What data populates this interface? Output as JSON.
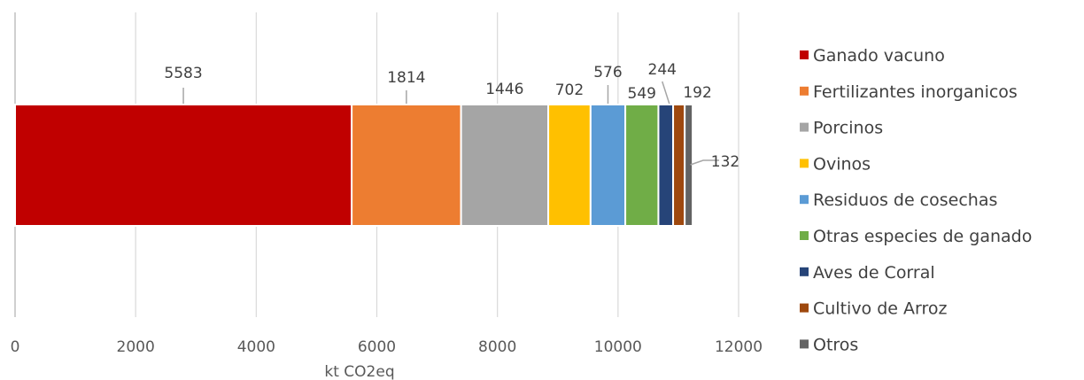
{
  "chart_data": {
    "type": "bar",
    "orientation": "horizontal",
    "stacked": true,
    "xlabel": "kt CO2eq",
    "ylabel": "",
    "xlim": [
      0,
      12000
    ],
    "x_ticks": [
      0,
      2000,
      4000,
      6000,
      8000,
      10000,
      12000
    ],
    "grid": "vertical",
    "legend_position": "right",
    "series": [
      {
        "name": "Ganado vacuno",
        "value": 5583,
        "color": "#C00000"
      },
      {
        "name": "Fertilizantes inorganicos",
        "value": 1814,
        "color": "#ED7D31"
      },
      {
        "name": "Porcinos",
        "value": 1446,
        "color": "#A5A5A5"
      },
      {
        "name": "Ovinos",
        "value": 702,
        "color": "#FFC000"
      },
      {
        "name": "Residuos de cosechas",
        "value": 576,
        "color": "#5B9BD5"
      },
      {
        "name": "Otras especies de ganado",
        "value": 549,
        "color": "#70AD47"
      },
      {
        "name": "Aves de Corral",
        "value": 244,
        "color": "#264478"
      },
      {
        "name": "Cultivo de Arroz",
        "value": 192,
        "color": "#9E480E"
      },
      {
        "name": "Otros",
        "value": 132,
        "color": "#636363"
      }
    ]
  }
}
